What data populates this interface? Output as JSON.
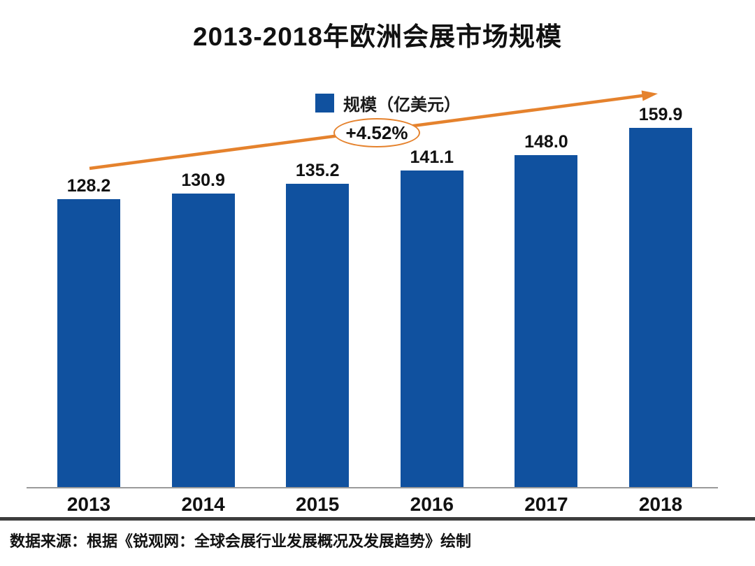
{
  "chart_data": {
    "type": "bar",
    "title": "2013-2018年欧洲会展市场规模",
    "categories": [
      "2013",
      "2014",
      "2015",
      "2016",
      "2017",
      "2018"
    ],
    "values": [
      128.2,
      130.9,
      135.2,
      141.1,
      148.0,
      159.9
    ],
    "value_labels": [
      "128.2",
      "130.9",
      "135.2",
      "141.1",
      "148.0",
      "159.9"
    ],
    "series_name": "规模（亿美元）",
    "legend": "规模（亿美元）",
    "legend_position": "top-center",
    "growth_annotation": "+4.52%",
    "source": "数据来源：根据《锐观网：全球会展行业发展概况及发展趋势》绘制",
    "xlabel": "",
    "ylabel": "",
    "ylim": [
      0,
      170
    ],
    "grid": false,
    "bar_color": "#10519f",
    "arrow_color": "#e5822d",
    "axis_line_color": "#9a9a9a",
    "separator_color": "#3d3d3d"
  }
}
